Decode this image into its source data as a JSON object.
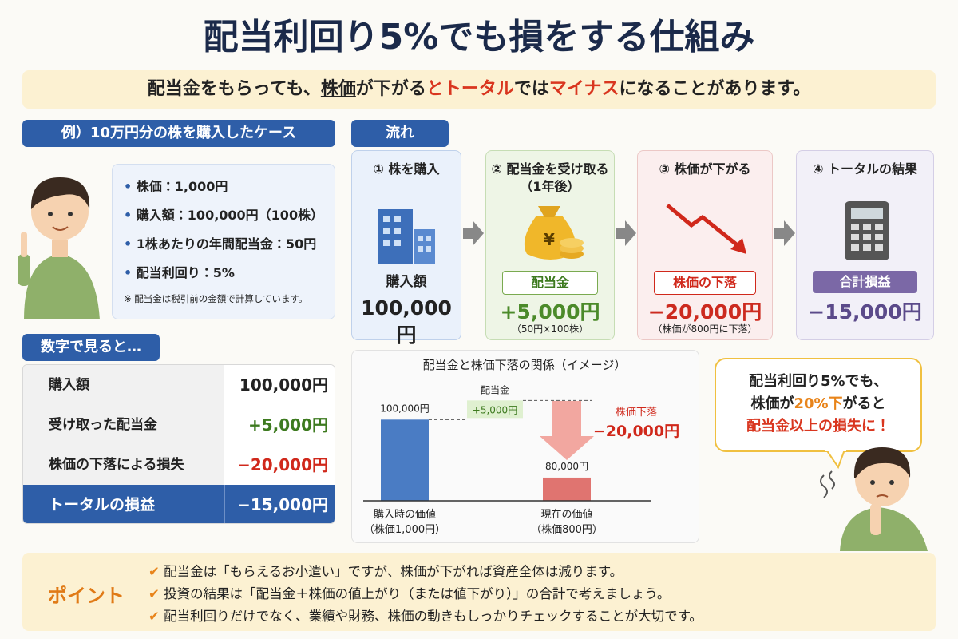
{
  "title": "配当利回り5%でも損をする仕組み",
  "subtitle": [
    "配当金をもらっても、",
    "株価",
    "が下がる",
    "と",
    "トータル",
    "では",
    "マイナス",
    "になることがあります。"
  ],
  "example": {
    "heading": "例）10万円分の株を購入したケース",
    "items": [
      "株価：1,000円",
      "購入額：100,000円（100株）",
      "1株あたりの年間配当金：50円",
      "配当利回り：5%"
    ],
    "note": "※ 配当金は税引前の金額で計算しています。"
  },
  "numbers": {
    "heading": "数字で見ると…",
    "rows": [
      [
        "購入額",
        "100,000円"
      ],
      [
        "受け取った配当金",
        "+5,000円"
      ],
      [
        "株価の下落による損失",
        "−20,000円"
      ],
      [
        "トータルの損益",
        "−15,000円"
      ]
    ]
  },
  "flow": {
    "heading": "流れ",
    "steps": [
      {
        "title": "① 株を購入",
        "label": "購入額",
        "amount": "100,000円"
      },
      {
        "title": "② 配当金を受け取る（1年後）",
        "label": "配当金",
        "amount": "+5,000円",
        "note": "（50円×100株）"
      },
      {
        "title": "③ 株価が下がる",
        "label": "株価の下落",
        "amount": "−20,000円",
        "note": "（株価が800円に下落）"
      },
      {
        "title": "④ トータルの結果",
        "label": "合計損益",
        "amount": "−15,000円"
      }
    ]
  },
  "chart_data": {
    "type": "bar",
    "title": "配当金と株価下落の関係（イメージ）",
    "categories": [
      "購入時の価値",
      "現在の価値"
    ],
    "category_notes": [
      "（株価1,000円）",
      "（株価800円）"
    ],
    "values": [
      100000,
      80000
    ],
    "value_labels": [
      "100,000円",
      "80,000円"
    ],
    "colors": [
      "#4a7cc4",
      "#e07470"
    ],
    "ylim": [
      72000,
      110000
    ],
    "dividend": {
      "label": "配当金",
      "amount": "+5,000円"
    },
    "drop": {
      "label": "株価下落",
      "amount": "−20,000円"
    }
  },
  "bubble": [
    [
      "配当利回り5%でも、"
    ],
    [
      "株価が",
      "20%下",
      "がると"
    ],
    [
      "配当金以上の損失に！"
    ]
  ],
  "point": {
    "label": "ポイント",
    "items": [
      "配当金は「もらえるお小遣い」ですが、株価が下がれば資産全体は減ります。",
      "投資の結果は「配当金＋株価の値上がり（または値下がり）」の合計で考えましょう。",
      "配当利回りだけでなく、業績や財務、株価の動きもしっかりチェックすることが大切です。"
    ]
  }
}
